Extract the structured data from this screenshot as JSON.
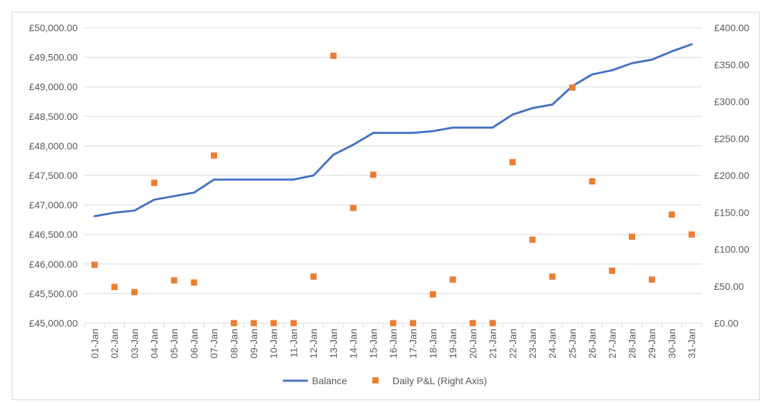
{
  "chart_data": {
    "type": "line",
    "title": "",
    "categories": [
      "01-Jan",
      "02-Jan",
      "03-Jan",
      "04-Jan",
      "05-Jan",
      "06-Jan",
      "07-Jan",
      "08-Jan",
      "09-Jan",
      "10-Jan",
      "11-Jan",
      "12-Jan",
      "13-Jan",
      "14-Jan",
      "15-Jan",
      "16-Jan",
      "17-Jan",
      "18-Jan",
      "19-Jan",
      "20-Jan",
      "21-Jan",
      "22-Jan",
      "23-Jan",
      "24-Jan",
      "25-Jan",
      "26-Jan",
      "27-Jan",
      "28-Jan",
      "29-Jan",
      "30-Jan",
      "31-Jan"
    ],
    "series": [
      {
        "name": "Balance",
        "type": "line",
        "axis": "left",
        "color": "#4472C4",
        "values": [
          46810,
          46870,
          46905,
          47090,
          47150,
          47210,
          47430,
          47430,
          47430,
          47430,
          47430,
          47500,
          47850,
          48020,
          48220,
          48220,
          48220,
          48250,
          48310,
          48310,
          48310,
          48530,
          48640,
          48700,
          49010,
          49210,
          49280,
          49400,
          49460,
          49600,
          49720
        ]
      },
      {
        "name": "Daily P&L (Right Axis)",
        "type": "scatter",
        "axis": "right",
        "color": "#ED7D31",
        "marker": "square",
        "values": [
          79,
          49,
          42,
          190,
          58,
          55,
          227,
          0,
          0,
          0,
          0,
          63,
          362,
          156,
          201,
          0,
          0,
          39,
          59,
          0,
          0,
          218,
          113,
          63,
          319,
          192,
          71,
          117,
          59,
          147,
          120
        ]
      }
    ],
    "y_left": {
      "min": 45000,
      "max": 50000,
      "step": 500,
      "tick_labels": [
        "£45,000.00",
        "£45,500.00",
        "£46,000.00",
        "£46,500.00",
        "£47,000.00",
        "£47,500.00",
        "£48,000.00",
        "£48,500.00",
        "£49,000.00",
        "£49,500.00",
        "£50,000.00"
      ]
    },
    "y_right": {
      "min": 0,
      "max": 400,
      "step": 50,
      "tick_labels": [
        "£0.00",
        "£50.00",
        "£100.00",
        "£150.00",
        "£200.00",
        "£250.00",
        "£300.00",
        "£350.00",
        "£400.00"
      ]
    },
    "grid": true,
    "legend": {
      "placement": "bottom",
      "entries": [
        "Balance",
        "Daily P&L (Right Axis)"
      ]
    },
    "gridline_color": "#d9d9d9",
    "text_color": "#595959"
  }
}
